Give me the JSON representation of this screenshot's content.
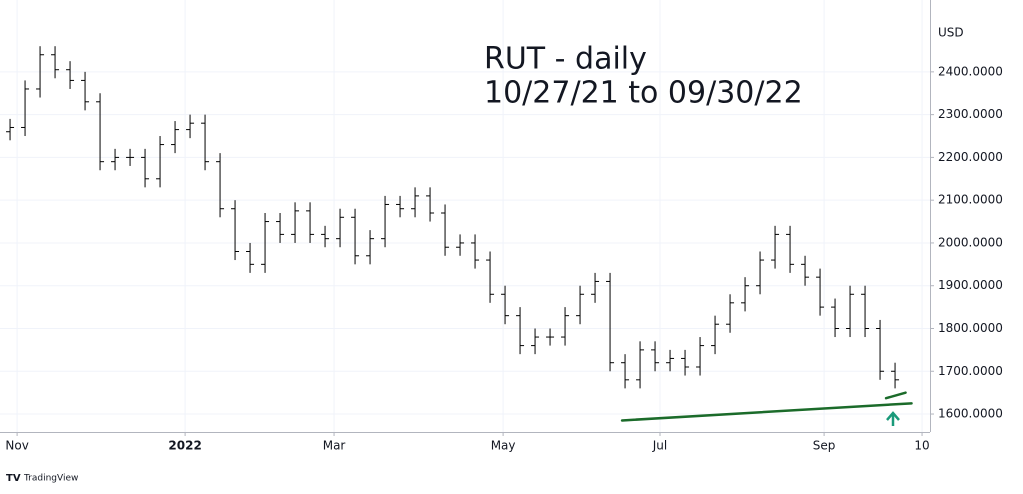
{
  "chart_data": {
    "type": "ohlc",
    "title": "RUT - daily",
    "subtitle": "10/27/21 to 09/30/22",
    "y_axis_label": "USD",
    "brand": "TradingView",
    "color": "#000000",
    "grid": true,
    "xlim": [
      -0.67,
      61.33
    ],
    "xticks": [
      {
        "value": 0.47,
        "label": "Nov"
      },
      {
        "value": 11.67,
        "label": "2022"
      },
      {
        "value": 21.6,
        "label": "Mar"
      },
      {
        "value": 32.87,
        "label": "May"
      },
      {
        "value": 43.33,
        "label": "Jul"
      },
      {
        "value": 54.27,
        "label": "Sep"
      },
      {
        "value": 60.8,
        "label": "10"
      }
    ],
    "ylim": [
      1558,
      2568
    ],
    "yticks": [
      {
        "value": 1600,
        "label": "1600.0000"
      },
      {
        "value": 1700,
        "label": "1700.0000"
      },
      {
        "value": 1800,
        "label": "1800.0000"
      },
      {
        "value": 1900,
        "label": "1900.0000"
      },
      {
        "value": 2000,
        "label": "2000.0000"
      },
      {
        "value": 2100,
        "label": "2100.0000"
      },
      {
        "value": 2200,
        "label": "2200.0000"
      },
      {
        "value": 2300,
        "label": "2300.0000"
      },
      {
        "value": 2400,
        "label": "2400.0000"
      }
    ],
    "open": [
      2260,
      2270,
      2360,
      2440,
      2405,
      2380,
      2330,
      2190,
      2200,
      2200,
      2150,
      2230,
      2265,
      2280,
      2190,
      2080,
      1980,
      1950,
      2050,
      2020,
      2075,
      2020,
      2010,
      2060,
      1970,
      2010,
      2090,
      2080,
      2110,
      2070,
      1990,
      2000,
      1960,
      1880,
      1830,
      1760,
      1780,
      1780,
      1830,
      1880,
      1910,
      1720,
      1680,
      1750,
      1720,
      1730,
      1710,
      1760,
      1810,
      1860,
      1900,
      1960,
      2020,
      1950,
      1920,
      1850,
      1800,
      1880,
      1800,
      1700
    ],
    "high": [
      2290,
      2380,
      2460,
      2460,
      2425,
      2400,
      2350,
      2220,
      2220,
      2220,
      2250,
      2285,
      2300,
      2300,
      2210,
      2100,
      2000,
      2070,
      2070,
      2095,
      2095,
      2040,
      2080,
      2080,
      2030,
      2110,
      2110,
      2130,
      2130,
      2090,
      2020,
      2020,
      1980,
      1900,
      1850,
      1800,
      1800,
      1850,
      1900,
      1930,
      1930,
      1740,
      1770,
      1770,
      1750,
      1750,
      1780,
      1830,
      1880,
      1920,
      1980,
      2040,
      2040,
      1970,
      1940,
      1870,
      1900,
      1900,
      1820,
      1720
    ],
    "low": [
      2240,
      2250,
      2340,
      2385,
      2360,
      2310,
      2170,
      2170,
      2180,
      2130,
      2130,
      2210,
      2245,
      2170,
      2060,
      1960,
      1930,
      1930,
      2000,
      2000,
      2000,
      1990,
      1990,
      1950,
      1950,
      1990,
      2060,
      2060,
      2050,
      1970,
      1970,
      1940,
      1860,
      1810,
      1740,
      1740,
      1760,
      1760,
      1810,
      1860,
      1700,
      1660,
      1660,
      1700,
      1700,
      1690,
      1690,
      1740,
      1790,
      1840,
      1880,
      1940,
      1930,
      1900,
      1830,
      1780,
      1780,
      1780,
      1680,
      1660
    ],
    "close": [
      2270,
      2360,
      2440,
      2405,
      2380,
      2330,
      2190,
      2200,
      2200,
      2150,
      2230,
      2265,
      2280,
      2190,
      2080,
      1980,
      1950,
      2050,
      2020,
      2075,
      2020,
      2010,
      2060,
      1970,
      2010,
      2090,
      2080,
      2110,
      2070,
      1990,
      2000,
      1960,
      1880,
      1830,
      1760,
      1780,
      1780,
      1830,
      1880,
      1910,
      1720,
      1680,
      1750,
      1720,
      1730,
      1710,
      1760,
      1810,
      1860,
      1900,
      1960,
      2020,
      1950,
      1920,
      1850,
      1800,
      1880,
      1800,
      1700,
      1680
    ],
    "trendline_color": "#1b6b2a",
    "trendlines": [
      {
        "x": [
          40.8,
          60.1
        ],
        "y": [
          1585,
          1625
        ]
      },
      {
        "x": [
          58.4,
          59.7
        ],
        "y": [
          1637,
          1650
        ]
      }
    ],
    "arrow_color": "#1a9a7a"
  }
}
